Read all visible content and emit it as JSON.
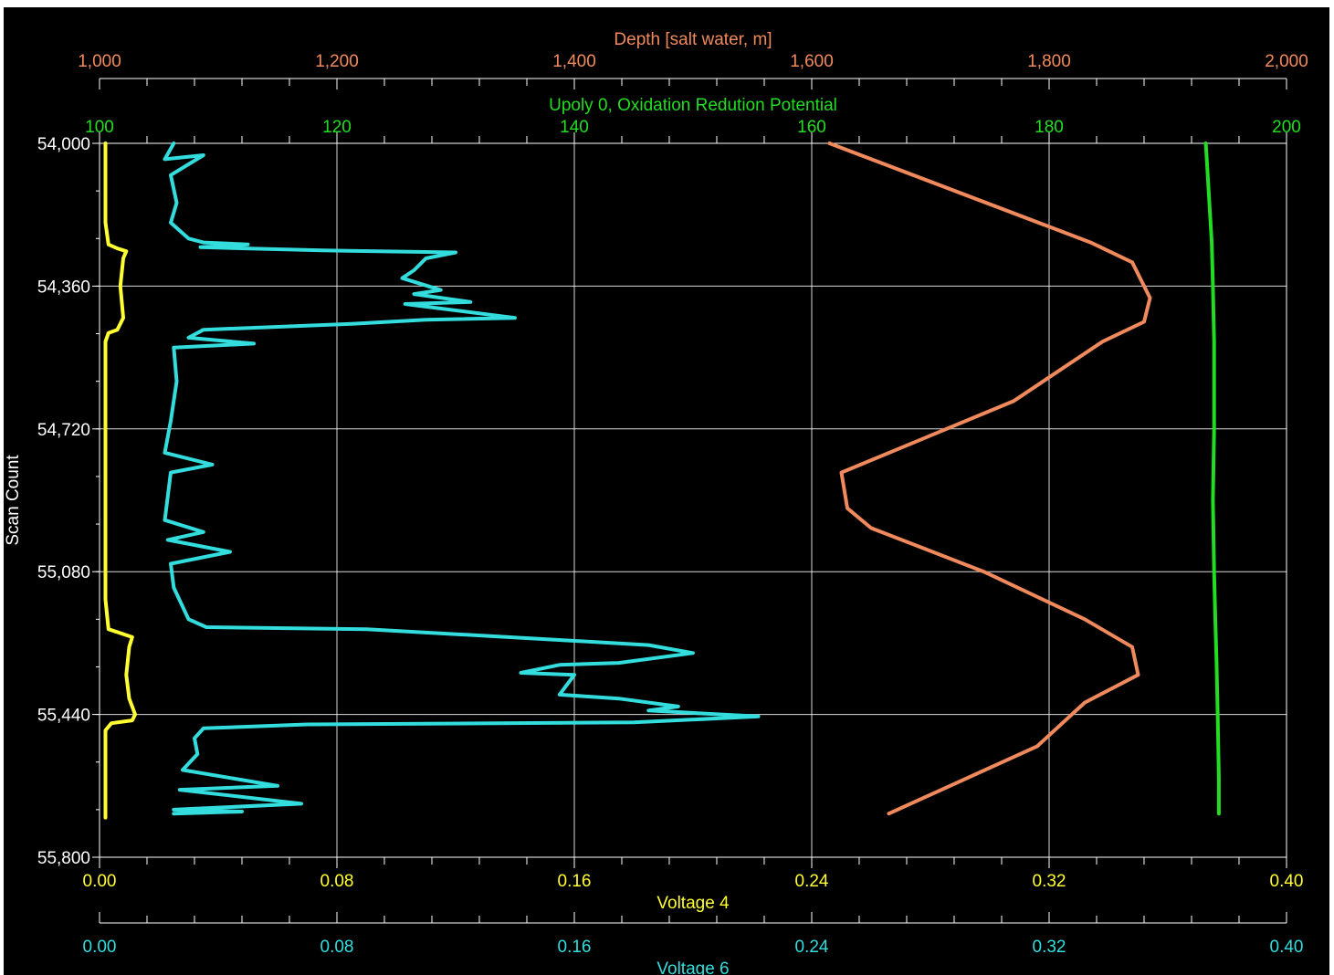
{
  "chart_data": {
    "type": "line",
    "left_axis": {
      "title": "Scan Count",
      "range": [
        54000,
        55800
      ],
      "tick_values": [
        54000,
        54360,
        54720,
        55080,
        55440,
        55800
      ],
      "tick_labels": [
        "54,000",
        "54,360",
        "54,720",
        "55,080",
        "55,440",
        "55,800"
      ],
      "color": "#ffffff"
    },
    "top_axes": [
      {
        "title": "Depth [salt water, m]",
        "range": [
          1000,
          2000
        ],
        "tick_labels": [
          "1,000",
          "1,200",
          "1,400",
          "1,600",
          "1,800",
          "2,000"
        ],
        "color": "#f08a5d"
      },
      {
        "title": "Upoly 0, Oxidation Redution Potential",
        "range": [
          100,
          200
        ],
        "tick_labels": [
          "100",
          "120",
          "140",
          "160",
          "180",
          "200"
        ],
        "color": "#22dd22"
      }
    ],
    "bottom_axes": [
      {
        "title": "Voltage 4",
        "range": [
          0,
          0.4
        ],
        "tick_labels": [
          "0.00",
          "0.08",
          "0.16",
          "0.24",
          "0.32",
          "0.40"
        ],
        "color": "#ffff33"
      },
      {
        "title": "Voltage 6",
        "range": [
          0,
          0.4
        ],
        "tick_labels": [
          "0.00",
          "0.08",
          "0.16",
          "0.24",
          "0.32",
          "0.40"
        ],
        "color": "#33dddd"
      }
    ],
    "grid": true,
    "series": [
      {
        "name": "Voltage 4",
        "axis": "bottom-1",
        "color": "#ffff33",
        "points": [
          [
            0.002,
            54000
          ],
          [
            0.002,
            54200
          ],
          [
            0.003,
            54255
          ],
          [
            0.006,
            54265
          ],
          [
            0.009,
            54272
          ],
          [
            0.008,
            54290
          ],
          [
            0.007,
            54360
          ],
          [
            0.008,
            54440
          ],
          [
            0.006,
            54470
          ],
          [
            0.003,
            54478
          ],
          [
            0.002,
            54500
          ],
          [
            0.002,
            54800
          ],
          [
            0.002,
            55150
          ],
          [
            0.003,
            55225
          ],
          [
            0.007,
            55235
          ],
          [
            0.011,
            55245
          ],
          [
            0.01,
            55270
          ],
          [
            0.009,
            55340
          ],
          [
            0.01,
            55400
          ],
          [
            0.012,
            55440
          ],
          [
            0.011,
            55455
          ],
          [
            0.004,
            55462
          ],
          [
            0.002,
            55480
          ],
          [
            0.002,
            55700
          ]
        ]
      },
      {
        "name": "Voltage 6",
        "axis": "bottom-2",
        "color": "#33dddd",
        "points": [
          [
            0.025,
            54000
          ],
          [
            0.022,
            54040
          ],
          [
            0.035,
            54030
          ],
          [
            0.024,
            54080
          ],
          [
            0.026,
            54150
          ],
          [
            0.024,
            54200
          ],
          [
            0.03,
            54240
          ],
          [
            0.035,
            54250
          ],
          [
            0.05,
            54255
          ],
          [
            0.034,
            54262
          ],
          [
            0.075,
            54270
          ],
          [
            0.12,
            54275
          ],
          [
            0.11,
            54290
          ],
          [
            0.106,
            54320
          ],
          [
            0.102,
            54340
          ],
          [
            0.115,
            54370
          ],
          [
            0.106,
            54380
          ],
          [
            0.125,
            54400
          ],
          [
            0.103,
            54405
          ],
          [
            0.14,
            54440
          ],
          [
            0.11,
            54445
          ],
          [
            0.085,
            54455
          ],
          [
            0.035,
            54470
          ],
          [
            0.03,
            54490
          ],
          [
            0.052,
            54505
          ],
          [
            0.025,
            54515
          ],
          [
            0.026,
            54600
          ],
          [
            0.024,
            54700
          ],
          [
            0.022,
            54780
          ],
          [
            0.038,
            54810
          ],
          [
            0.024,
            54830
          ],
          [
            0.022,
            54950
          ],
          [
            0.035,
            54980
          ],
          [
            0.023,
            55000
          ],
          [
            0.044,
            55030
          ],
          [
            0.024,
            55060
          ],
          [
            0.025,
            55120
          ],
          [
            0.03,
            55200
          ],
          [
            0.036,
            55220
          ],
          [
            0.09,
            55225
          ],
          [
            0.15,
            55250
          ],
          [
            0.185,
            55265
          ],
          [
            0.2,
            55285
          ],
          [
            0.175,
            55310
          ],
          [
            0.155,
            55315
          ],
          [
            0.142,
            55335
          ],
          [
            0.16,
            55340
          ],
          [
            0.155,
            55390
          ],
          [
            0.175,
            55400
          ],
          [
            0.195,
            55420
          ],
          [
            0.185,
            55430
          ],
          [
            0.222,
            55445
          ],
          [
            0.18,
            55460
          ],
          [
            0.07,
            55465
          ],
          [
            0.035,
            55475
          ],
          [
            0.032,
            55500
          ],
          [
            0.033,
            55540
          ],
          [
            0.028,
            55580
          ],
          [
            0.06,
            55620
          ],
          [
            0.027,
            55630
          ],
          [
            0.068,
            55665
          ],
          [
            0.025,
            55680
          ],
          [
            0.048,
            55685
          ],
          [
            0.025,
            55690
          ]
        ]
      },
      {
        "name": "Depth [salt water, m]",
        "axis": "top-1",
        "color": "#f08a5d",
        "points": [
          [
            1615,
            54000
          ],
          [
            1835,
            54250
          ],
          [
            1870,
            54300
          ],
          [
            1885,
            54390
          ],
          [
            1880,
            54450
          ],
          [
            1845,
            54500
          ],
          [
            1770,
            54650
          ],
          [
            1625,
            54830
          ],
          [
            1630,
            54920
          ],
          [
            1650,
            54970
          ],
          [
            1745,
            55080
          ],
          [
            1830,
            55200
          ],
          [
            1870,
            55270
          ],
          [
            1875,
            55340
          ],
          [
            1830,
            55410
          ],
          [
            1790,
            55520
          ],
          [
            1665,
            55690
          ]
        ]
      },
      {
        "name": "Upoly 0, Oxidation Redution Potential",
        "axis": "top-2",
        "color": "#22dd22",
        "points": [
          [
            193.2,
            54000
          ],
          [
            193.4,
            54100
          ],
          [
            193.7,
            54250
          ],
          [
            193.8,
            54360
          ],
          [
            193.9,
            54500
          ],
          [
            193.9,
            54720
          ],
          [
            193.8,
            54900
          ],
          [
            193.9,
            55080
          ],
          [
            194.0,
            55200
          ],
          [
            194.1,
            55300
          ],
          [
            194.2,
            55440
          ],
          [
            194.3,
            55600
          ],
          [
            194.3,
            55690
          ]
        ]
      }
    ]
  }
}
